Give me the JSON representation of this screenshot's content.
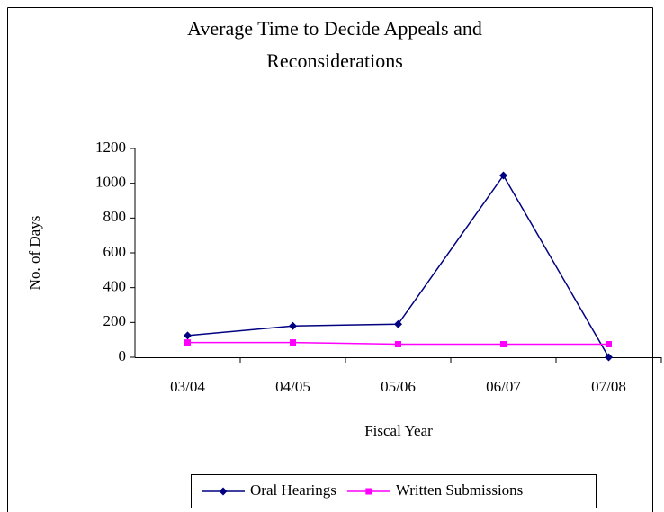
{
  "chart_data": {
    "type": "line",
    "title": "Average Time to Decide Appeals and Reconsiderations",
    "x_label": "Fiscal Year",
    "y_label": "No. of Days",
    "categories": [
      "03/04",
      "04/05",
      "05/06",
      "06/07",
      "07/08"
    ],
    "series": [
      {
        "name": "Oral Hearings",
        "color": "#000080",
        "marker": "diamond",
        "values": [
          125,
          180,
          190,
          1045,
          0
        ]
      },
      {
        "name": "Written Submissions",
        "color": "#ff00ff",
        "marker": "square",
        "values": [
          85,
          85,
          75,
          75,
          75
        ]
      }
    ],
    "ylim": [
      0,
      1200
    ],
    "yticks": [
      0,
      200,
      400,
      600,
      800,
      1000,
      1200
    ],
    "legend": "bottom"
  }
}
